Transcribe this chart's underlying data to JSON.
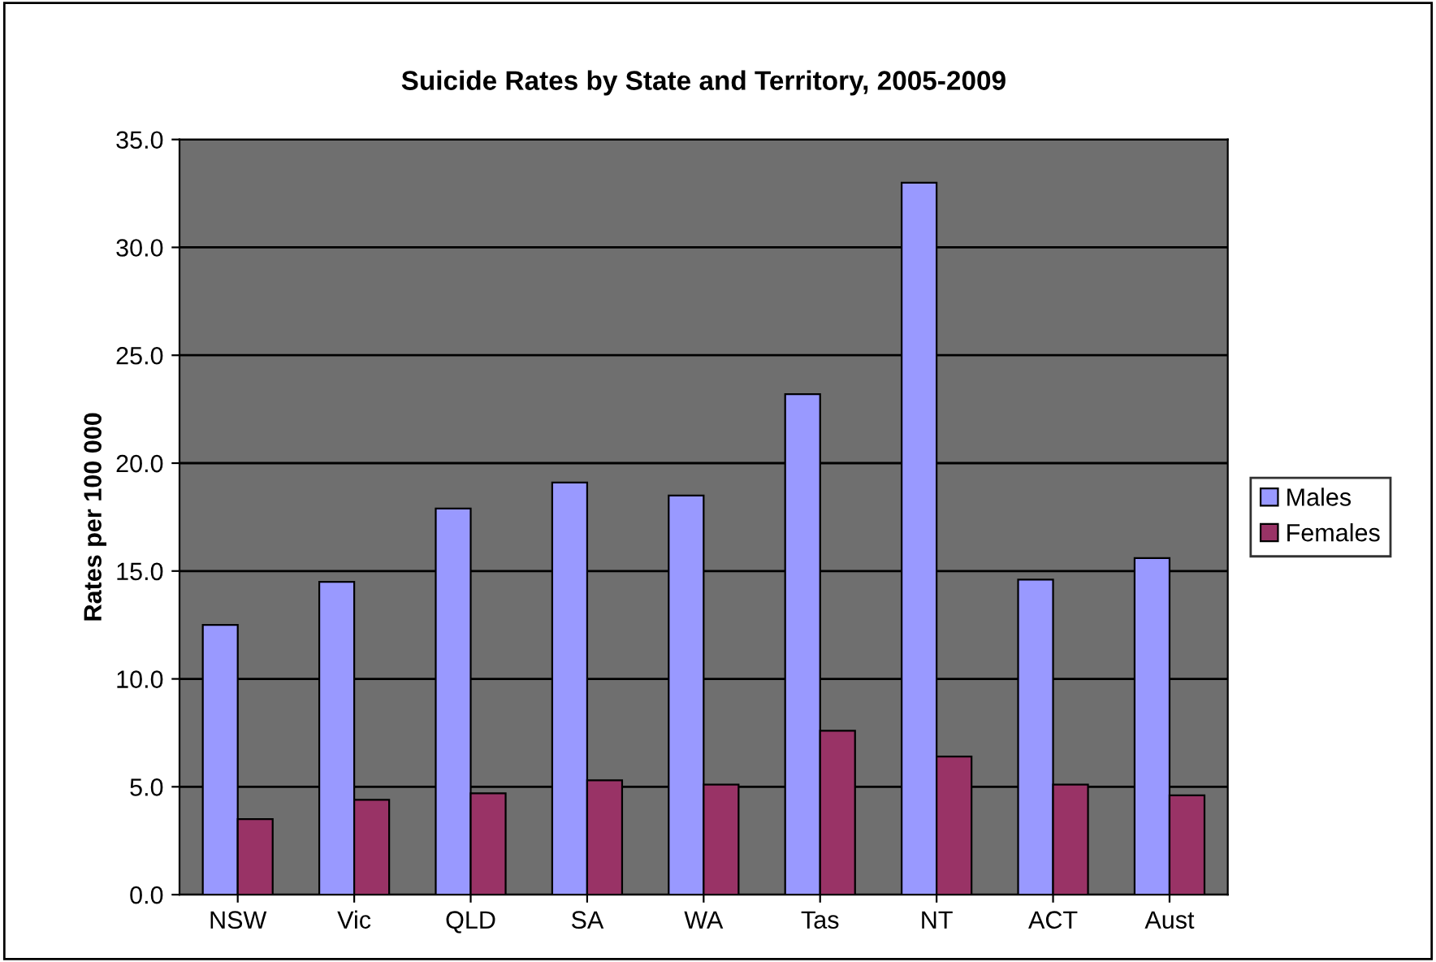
{
  "chart_data": {
    "type": "bar",
    "title": "Suicide Rates by State and Territory, 2005-2009",
    "ylabel": "Rates per 100 000",
    "categories": [
      "NSW",
      "Vic",
      "QLD",
      "SA",
      "WA",
      "Tas",
      "NT",
      "ACT",
      "Aust"
    ],
    "series": [
      {
        "name": "Males",
        "color": "#9999ff",
        "values": [
          12.5,
          14.5,
          17.9,
          19.1,
          18.5,
          23.2,
          33.0,
          14.6,
          15.6
        ]
      },
      {
        "name": "Females",
        "color": "#993366",
        "values": [
          3.5,
          4.4,
          4.7,
          5.3,
          5.1,
          7.6,
          6.4,
          5.1,
          4.6
        ]
      }
    ],
    "ylim": [
      0,
      35
    ],
    "yticks": [
      {
        "value": 0,
        "label": "0.0"
      },
      {
        "value": 5,
        "label": "5.0"
      },
      {
        "value": 10,
        "label": "10.0"
      },
      {
        "value": 15,
        "label": "15.0"
      },
      {
        "value": 20,
        "label": "20.0"
      },
      {
        "value": 25,
        "label": "25.0"
      },
      {
        "value": 30,
        "label": "30.0"
      },
      {
        "value": 35,
        "label": "35.0"
      }
    ],
    "grid": "y",
    "legend": "right"
  }
}
